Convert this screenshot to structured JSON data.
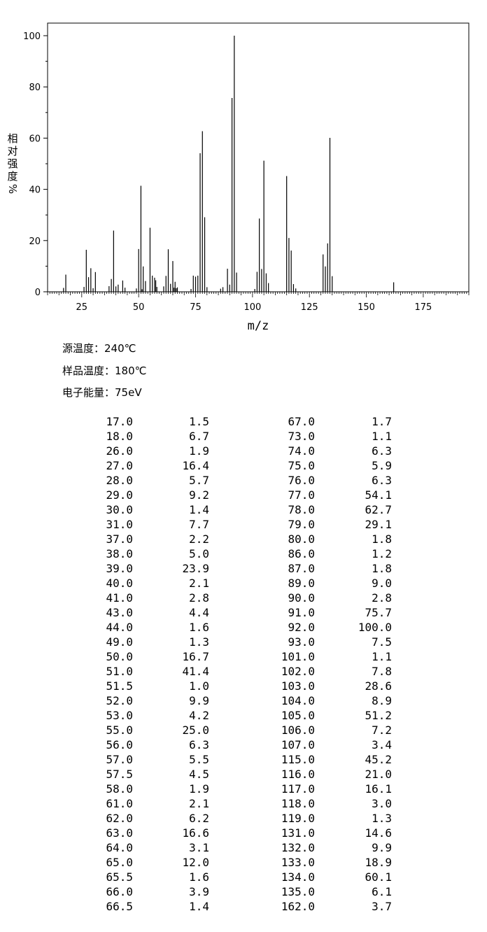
{
  "chart_data": {
    "type": "bar",
    "xlabel": "m/z",
    "ylabel": "相对强度/%",
    "xlim": [
      10,
      195
    ],
    "ylim": [
      0,
      105
    ],
    "xticks": [
      25,
      50,
      75,
      100,
      125,
      150,
      175
    ],
    "yticks": [
      0,
      20,
      40,
      60,
      80,
      100
    ],
    "grid": false,
    "series": [
      {
        "x": [
          17.0,
          18.0,
          26.0,
          27.0,
          28.0,
          29.0,
          30.0,
          31.0,
          37.0,
          38.0,
          39.0,
          40.0,
          41.0,
          43.0,
          44.0,
          49.0,
          50.0,
          51.0,
          51.5,
          52.0,
          53.0,
          55.0,
          56.0,
          57.0,
          57.5,
          58.0,
          61.0,
          62.0,
          63.0,
          64.0,
          65.0,
          65.5,
          66.0,
          66.5,
          67.0,
          73.0,
          74.0,
          75.0,
          76.0,
          77.0,
          78.0,
          79.0,
          80.0,
          86.0,
          87.0,
          89.0,
          90.0,
          91.0,
          92.0,
          93.0,
          101.0,
          102.0,
          103.0,
          104.0,
          105.0,
          106.0,
          107.0,
          115.0,
          116.0,
          117.0,
          118.0,
          119.0,
          131.0,
          132.0,
          133.0,
          134.0,
          135.0,
          162.0
        ],
        "y": [
          1.5,
          6.7,
          1.9,
          16.4,
          5.7,
          9.2,
          1.4,
          7.7,
          2.2,
          5.0,
          23.9,
          2.1,
          2.8,
          4.4,
          1.6,
          1.3,
          16.7,
          41.4,
          1.0,
          9.9,
          4.2,
          25.0,
          6.3,
          5.5,
          4.5,
          1.9,
          2.1,
          6.2,
          16.6,
          3.1,
          12.0,
          1.6,
          3.9,
          1.4,
          1.7,
          1.1,
          6.3,
          5.9,
          6.3,
          54.1,
          62.7,
          29.1,
          1.8,
          1.2,
          1.8,
          9.0,
          2.8,
          75.7,
          100.0,
          7.5,
          1.1,
          7.8,
          28.6,
          8.9,
          51.2,
          7.2,
          3.4,
          45.2,
          21.0,
          16.1,
          3.0,
          1.3,
          14.6,
          9.9,
          18.9,
          60.1,
          6.1,
          3.7
        ]
      }
    ]
  },
  "conditions": {
    "source_temp": "源温度：240℃",
    "sample_temp": "样品温度：180℃",
    "electron_energy": "电子能量：75eV"
  },
  "table": {
    "rows": [
      [
        "17.0",
        "1.5",
        "67.0",
        "1.7"
      ],
      [
        "18.0",
        "6.7",
        "73.0",
        "1.1"
      ],
      [
        "26.0",
        "1.9",
        "74.0",
        "6.3"
      ],
      [
        "27.0",
        "16.4",
        "75.0",
        "5.9"
      ],
      [
        "28.0",
        "5.7",
        "76.0",
        "6.3"
      ],
      [
        "29.0",
        "9.2",
        "77.0",
        "54.1"
      ],
      [
        "30.0",
        "1.4",
        "78.0",
        "62.7"
      ],
      [
        "31.0",
        "7.7",
        "79.0",
        "29.1"
      ],
      [
        "37.0",
        "2.2",
        "80.0",
        "1.8"
      ],
      [
        "38.0",
        "5.0",
        "86.0",
        "1.2"
      ],
      [
        "39.0",
        "23.9",
        "87.0",
        "1.8"
      ],
      [
        "40.0",
        "2.1",
        "89.0",
        "9.0"
      ],
      [
        "41.0",
        "2.8",
        "90.0",
        "2.8"
      ],
      [
        "43.0",
        "4.4",
        "91.0",
        "75.7"
      ],
      [
        "44.0",
        "1.6",
        "92.0",
        "100.0"
      ],
      [
        "49.0",
        "1.3",
        "93.0",
        "7.5"
      ],
      [
        "50.0",
        "16.7",
        "101.0",
        "1.1"
      ],
      [
        "51.0",
        "41.4",
        "102.0",
        "7.8"
      ],
      [
        "51.5",
        "1.0",
        "103.0",
        "28.6"
      ],
      [
        "52.0",
        "9.9",
        "104.0",
        "8.9"
      ],
      [
        "53.0",
        "4.2",
        "105.0",
        "51.2"
      ],
      [
        "55.0",
        "25.0",
        "106.0",
        "7.2"
      ],
      [
        "56.0",
        "6.3",
        "107.0",
        "3.4"
      ],
      [
        "57.0",
        "5.5",
        "115.0",
        "45.2"
      ],
      [
        "57.5",
        "4.5",
        "116.0",
        "21.0"
      ],
      [
        "58.0",
        "1.9",
        "117.0",
        "16.1"
      ],
      [
        "61.0",
        "2.1",
        "118.0",
        "3.0"
      ],
      [
        "62.0",
        "6.2",
        "119.0",
        "1.3"
      ],
      [
        "63.0",
        "16.6",
        "131.0",
        "14.6"
      ],
      [
        "64.0",
        "3.1",
        "132.0",
        "9.9"
      ],
      [
        "65.0",
        "12.0",
        "133.0",
        "18.9"
      ],
      [
        "65.5",
        "1.6",
        "134.0",
        "60.1"
      ],
      [
        "66.0",
        "3.9",
        "135.0",
        "6.1"
      ],
      [
        "66.5",
        "1.4",
        "162.0",
        "3.7"
      ]
    ]
  }
}
